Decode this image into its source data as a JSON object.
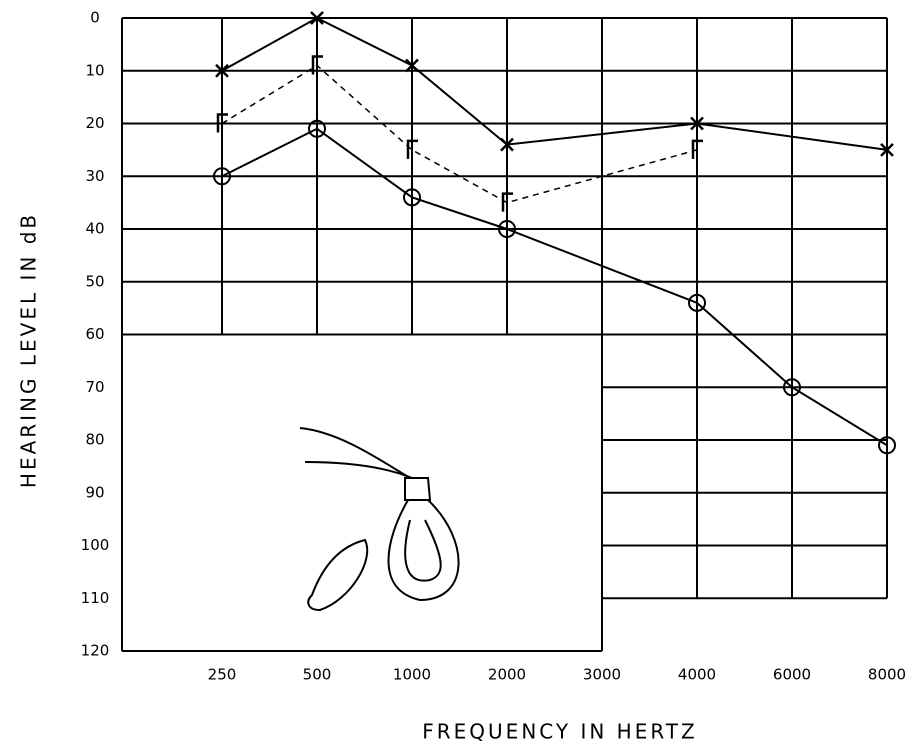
{
  "chart_data": {
    "type": "line",
    "x_label": "FREQUENCY IN HERTZ",
    "y_label": "HEARING LEVEL IN dB",
    "xticks": [
      250,
      500,
      1000,
      2000,
      3000,
      4000,
      6000,
      8000
    ],
    "ylim": [
      0,
      120
    ],
    "y_reversed": true,
    "yticks": [
      0,
      10,
      20,
      30,
      40,
      50,
      60,
      70,
      80,
      90,
      100,
      110,
      120
    ],
    "grid": true,
    "series": [
      {
        "color": "#000000",
        "marker": "x",
        "dashed": false,
        "x": [
          250,
          500,
          1000,
          2000,
          4000,
          8000
        ],
        "values": [
          10,
          0,
          9,
          24,
          20,
          25
        ]
      },
      {
        "color": "#000000",
        "marker": "bracket",
        "dashed": true,
        "x": [
          250,
          500,
          1000,
          2000,
          4000
        ],
        "values": [
          20,
          9,
          25,
          35,
          25
        ]
      },
      {
        "color": "#000000",
        "marker": "circle",
        "dashed": false,
        "x": [
          250,
          500,
          1000,
          2000,
          4000,
          6000,
          8000
        ],
        "values": [
          30,
          21,
          34,
          40,
          54,
          70,
          81
        ]
      }
    ]
  }
}
